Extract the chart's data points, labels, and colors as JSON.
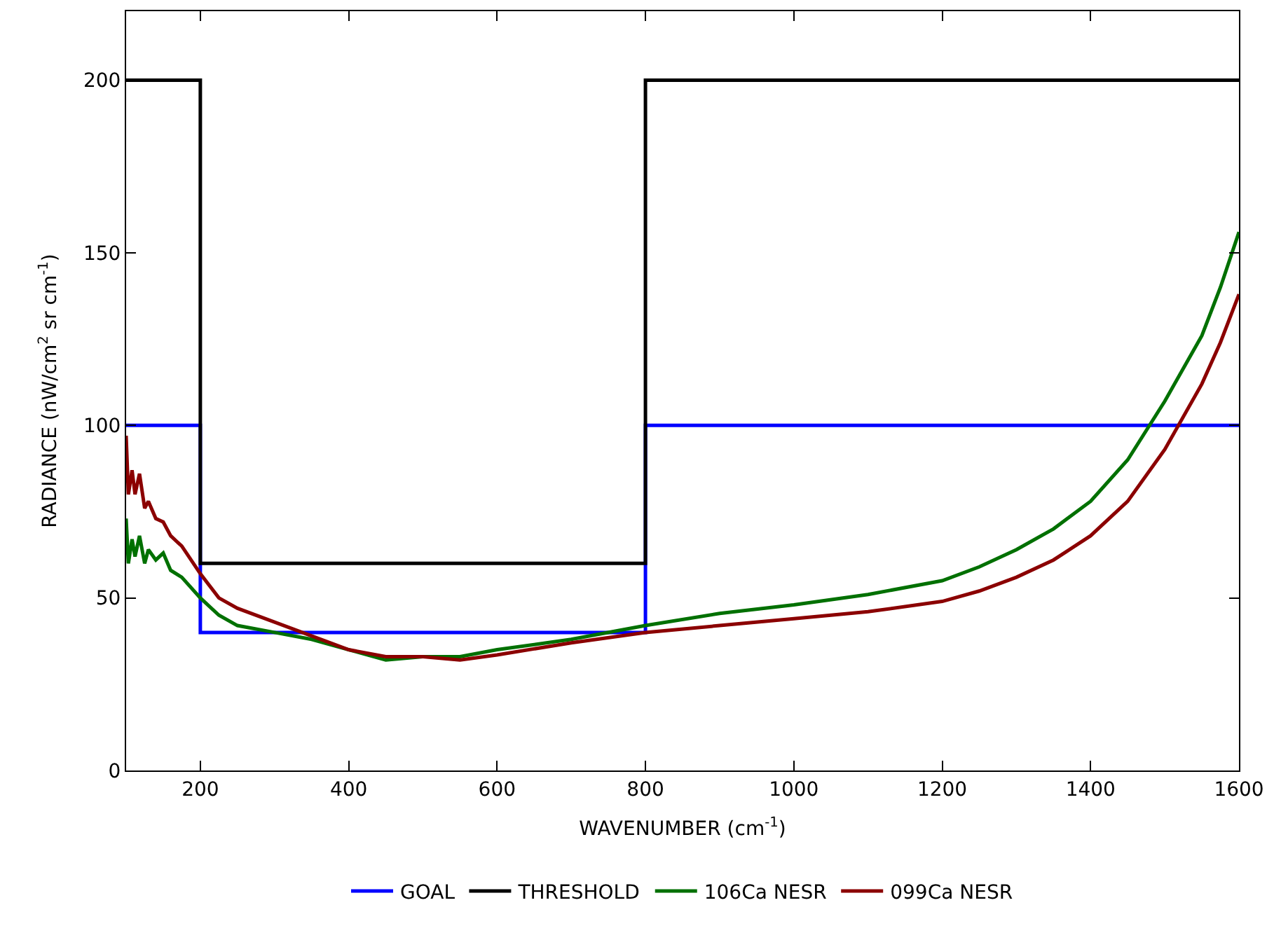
{
  "chart_data": {
    "type": "line",
    "xlabel": "WAVENUMBER (cm$^{-1}$)",
    "ylabel": "RADIANCE (nW/cm$^{2}$ sr cm$^{-1}$)",
    "xlim": [
      100,
      1600
    ],
    "xticks": [
      200,
      400,
      600,
      800,
      1000,
      1200,
      1400,
      1600
    ],
    "ylim": [
      0,
      220
    ],
    "yticks": [
      0,
      50,
      100,
      150,
      200
    ],
    "legend": "bottom",
    "marker": "none",
    "line_style": "solid",
    "series": [
      {
        "name": "GOAL",
        "color": "#0000ff",
        "type": "step",
        "x": [
          100,
          200,
          800,
          1600
        ],
        "values": [
          100,
          40,
          100,
          100
        ]
      },
      {
        "name": "THRESHOLD",
        "color": "#000000",
        "type": "step",
        "x": [
          100,
          200,
          800,
          1600
        ],
        "values": [
          200,
          60,
          200,
          200
        ]
      },
      {
        "name": "106Ca NESR",
        "color": "#007000",
        "x": [
          100,
          103,
          108,
          112,
          118,
          125,
          130,
          140,
          150,
          160,
          175,
          200,
          225,
          250,
          300,
          350,
          400,
          450,
          500,
          550,
          600,
          700,
          800,
          900,
          1000,
          1100,
          1200,
          1250,
          1300,
          1350,
          1400,
          1450,
          1500,
          1550,
          1575,
          1600
        ],
        "values": [
          73,
          60,
          67,
          62,
          68,
          60,
          64,
          61,
          63,
          58,
          56,
          50,
          45,
          42,
          40,
          38,
          35,
          32,
          33,
          33,
          35,
          38,
          42,
          45.5,
          48,
          51,
          55,
          59,
          64,
          70,
          78,
          90,
          107,
          126,
          140,
          156
        ]
      },
      {
        "name": "099Ca NESR",
        "color": "#8b0000",
        "x": [
          100,
          103,
          108,
          112,
          118,
          125,
          130,
          140,
          150,
          160,
          175,
          200,
          225,
          250,
          300,
          350,
          400,
          450,
          500,
          550,
          600,
          700,
          800,
          900,
          1000,
          1100,
          1200,
          1250,
          1300,
          1350,
          1400,
          1450,
          1500,
          1550,
          1575,
          1600
        ],
        "values": [
          97,
          80,
          87,
          80,
          86,
          76,
          78,
          73,
          72,
          68,
          65,
          57,
          50,
          47,
          43,
          39,
          35,
          33,
          33,
          32,
          33.5,
          37,
          40,
          42,
          44,
          46,
          49,
          52,
          56,
          61,
          68,
          78,
          93,
          112,
          124,
          138
        ]
      }
    ]
  }
}
